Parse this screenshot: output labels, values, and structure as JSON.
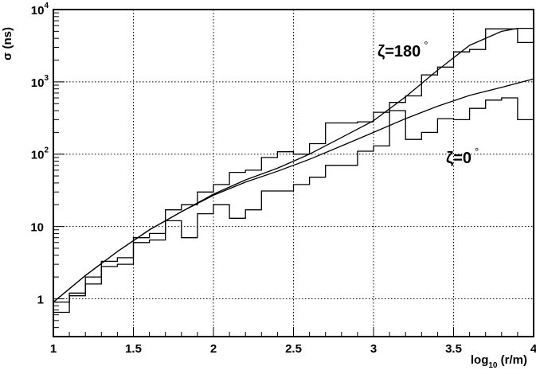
{
  "chart_data": {
    "type": "line",
    "title": "",
    "xlabel": "log10 (r/m)",
    "xlabel_parts": {
      "base": "log",
      "sub": "10",
      "rest": " (r/m)"
    },
    "ylabel": "σ (ns)",
    "xlim": [
      1,
      4
    ],
    "ylim": [
      0.3,
      10000
    ],
    "yscale": "log",
    "grid": true,
    "x_ticks": [
      "1",
      "1.5",
      "2",
      "2.5",
      "3",
      "3.5",
      "4"
    ],
    "y_ticks": [
      {
        "value": 1,
        "label": "1"
      },
      {
        "value": 10,
        "label": "10"
      },
      {
        "value": 100,
        "base": "10",
        "exp": "2"
      },
      {
        "value": 1000,
        "base": "10",
        "exp": "3"
      },
      {
        "value": 10000,
        "base": "10",
        "exp": "4"
      }
    ],
    "annotations": [
      {
        "name": "zeta-180-label",
        "text": "ζ=180",
        "degree": "°"
      },
      {
        "name": "zeta-0-label",
        "text": "ζ=0",
        "degree": "°"
      }
    ],
    "series": [
      {
        "kind": "histogram",
        "annotation": "ζ=180°",
        "bin_edges": [
          1.0,
          1.1,
          1.2,
          1.3,
          1.4,
          1.5,
          1.6,
          1.7,
          1.8,
          1.9,
          2.0,
          2.1,
          2.2,
          2.3,
          2.4,
          2.5,
          2.6,
          2.7,
          2.8,
          2.9,
          3.0,
          3.1,
          3.2,
          3.3,
          3.4,
          3.5,
          3.6,
          3.7,
          3.8,
          3.9,
          4.0
        ],
        "values": [
          0.9,
          1.2,
          2.0,
          3.3,
          3.7,
          7.0,
          8.0,
          17,
          20,
          30,
          38,
          56,
          60,
          90,
          108,
          100,
          140,
          270,
          270,
          280,
          380,
          520,
          640,
          1250,
          1600,
          2600,
          2800,
          5400,
          5400,
          3500
        ]
      },
      {
        "kind": "histogram",
        "annotation": "ζ=0°",
        "bin_edges": [
          1.0,
          1.1,
          1.2,
          1.3,
          1.4,
          1.5,
          1.6,
          1.7,
          1.8,
          1.9,
          2.0,
          2.1,
          2.2,
          2.3,
          2.4,
          2.5,
          2.6,
          2.7,
          2.8,
          2.9,
          3.0,
          3.1,
          3.2,
          3.3,
          3.4,
          3.5,
          3.6,
          3.7,
          3.8,
          3.9,
          4.0
        ],
        "values": [
          0.65,
          1.1,
          1.6,
          2.8,
          3.0,
          6.0,
          6.5,
          12,
          7.0,
          15,
          20,
          13,
          17,
          31,
          31,
          38,
          48,
          70,
          70,
          110,
          130,
          400,
          160,
          200,
          310,
          300,
          430,
          560,
          600,
          300
        ]
      },
      {
        "kind": "curve",
        "annotation": "ζ=180°",
        "x": [
          1.0,
          1.2,
          1.4,
          1.6,
          1.8,
          2.0,
          2.2,
          2.4,
          2.6,
          2.8,
          3.0,
          3.2,
          3.4,
          3.6,
          3.8,
          3.9,
          4.0
        ],
        "y": [
          0.9,
          2.1,
          4.5,
          9.0,
          16,
          28,
          44,
          64,
          100,
          170,
          290,
          620,
          1450,
          3200,
          5000,
          5500,
          5500
        ]
      },
      {
        "kind": "curve",
        "annotation": "ζ=0°",
        "x": [
          1.0,
          1.2,
          1.4,
          1.6,
          1.8,
          2.0,
          2.2,
          2.4,
          2.6,
          2.8,
          3.0,
          3.2,
          3.4,
          3.6,
          3.8,
          4.0
        ],
        "y": [
          0.9,
          2.1,
          4.5,
          9.0,
          16,
          27,
          41,
          58,
          85,
          130,
          200,
          310,
          460,
          650,
          840,
          1100
        ]
      }
    ]
  }
}
